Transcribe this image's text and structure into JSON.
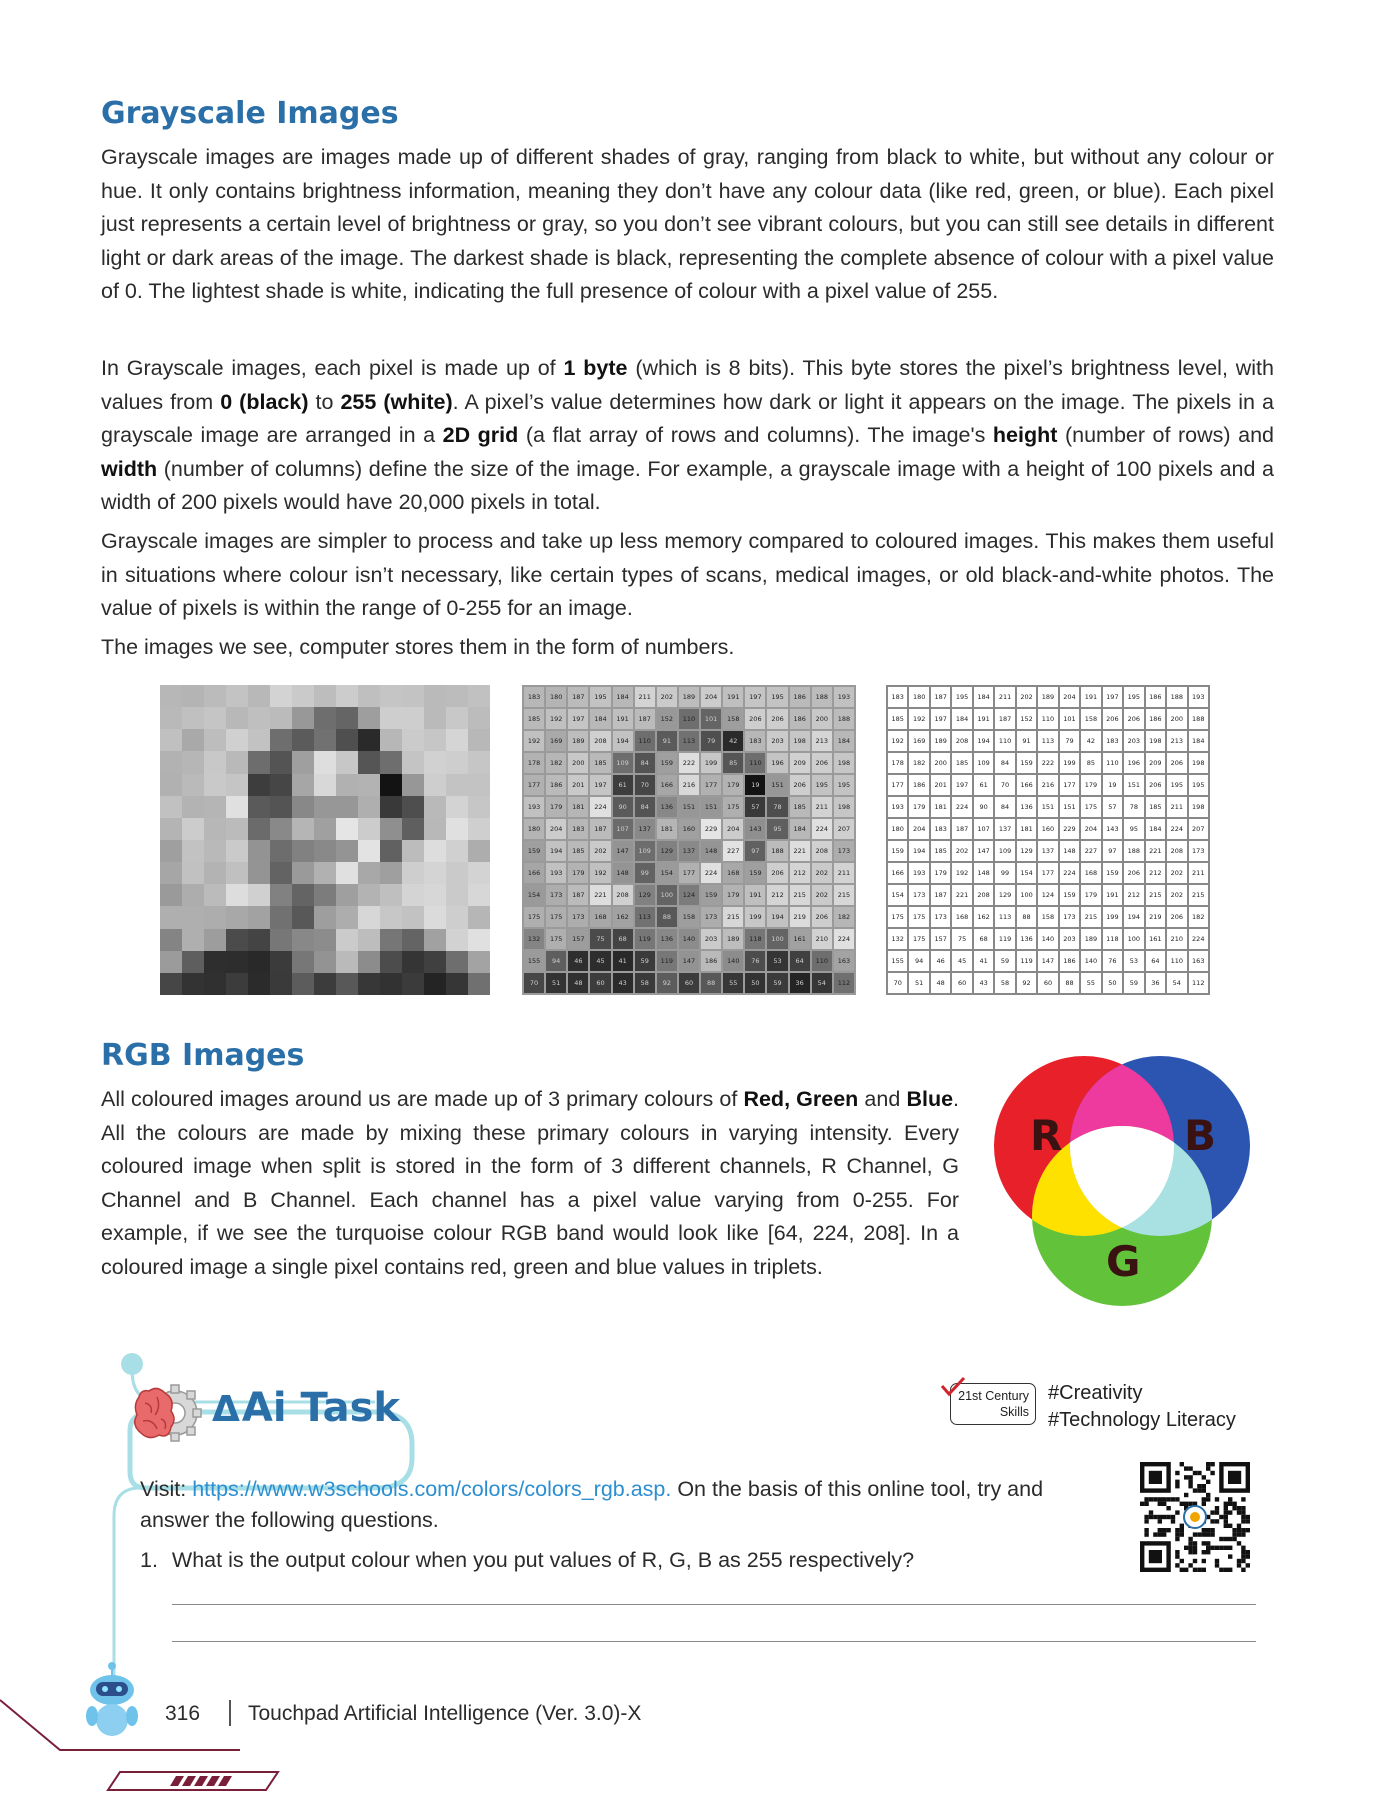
{
  "grayscale": {
    "heading": "Grayscale Images",
    "para1": "Grayscale images are images made up of different shades of gray, ranging from black to white, but without any colour or hue. It only contains brightness information, meaning they don’t have any colour data (like red, green, or blue). Each pixel just represents a certain level of brightness or gray, so you don’t see vibrant colours, but you can still see details in different light or dark areas of the image. The darkest shade is black, representing the complete absence of colour with a pixel value of 0. The lightest shade is white, indicating the full presence of colour with a pixel value of 255.",
    "para2": {
      "t1": "In Grayscale images, each pixel is made up of ",
      "b1": "1 byte",
      "t2": " (which is 8 bits). This byte stores the pixel’s brightness level, with values from ",
      "b2": "0 (black)",
      "t3": " to ",
      "b3": "255 (white)",
      "t4": ". A pixel’s value determines how dark or light it appears on the image. The pixels in a grayscale image are arranged in a ",
      "b4": "2D grid",
      "t5": " (a flat array of rows and columns). The image's ",
      "b5": "height",
      "t6": " (number of rows) and ",
      "b6": "width",
      "t7": " (number of columns) define the size of the image. For example, a grayscale image with a height of 100 pixels and a width of 200 pixels would have 20,000 pixels in total."
    },
    "para3": "Grayscale images are simpler to process and take up less memory compared to coloured images. This makes them useful in situations where colour isn’t necessary, like certain types of scans, medical images, or old black-and-white photos. The value of pixels is within the range of 0-255 for an image.",
    "para4": "The images we see, computer stores them in the form of numbers.",
    "pixel_values": [
      [
        183,
        180,
        187,
        195,
        184,
        211,
        202,
        189,
        204,
        191,
        197,
        195,
        186,
        188,
        193
      ],
      [
        185,
        192,
        197,
        184,
        191,
        187,
        152,
        110,
        101,
        158,
        206,
        206,
        186,
        200,
        188
      ],
      [
        192,
        169,
        189,
        208,
        194,
        110,
        91,
        113,
        79,
        42,
        183,
        203,
        198,
        213,
        184
      ],
      [
        178,
        182,
        200,
        185,
        109,
        84,
        159,
        222,
        199,
        85,
        110,
        196,
        209,
        206,
        198
      ],
      [
        177,
        186,
        201,
        197,
        61,
        70,
        166,
        216,
        177,
        179,
        19,
        151,
        206,
        195,
        195
      ],
      [
        193,
        179,
        181,
        224,
        90,
        84,
        136,
        151,
        151,
        175,
        57,
        78,
        185,
        211,
        198
      ],
      [
        180,
        204,
        183,
        187,
        107,
        137,
        181,
        160,
        229,
        204,
        143,
        95,
        184,
        224,
        207
      ],
      [
        159,
        194,
        185,
        202,
        147,
        109,
        129,
        137,
        148,
        227,
        97,
        188,
        221,
        208,
        173
      ],
      [
        166,
        193,
        179,
        192,
        148,
        99,
        154,
        177,
        224,
        168,
        159,
        206,
        212,
        202,
        211
      ],
      [
        154,
        173,
        187,
        221,
        208,
        129,
        100,
        124,
        159,
        179,
        191,
        212,
        215,
        202,
        215
      ],
      [
        175,
        175,
        173,
        168,
        162,
        113,
        88,
        158,
        173,
        215,
        199,
        194,
        219,
        206,
        182
      ],
      [
        132,
        175,
        157,
        75,
        68,
        119,
        136,
        140,
        203,
        189,
        118,
        100,
        161,
        210,
        224
      ],
      [
        155,
        94,
        46,
        45,
        41,
        59,
        119,
        147,
        186,
        140,
        76,
        53,
        64,
        110,
        163
      ],
      [
        70,
        51,
        48,
        60,
        43,
        58,
        92,
        60,
        88,
        55,
        50,
        59,
        36,
        54,
        112
      ]
    ]
  },
  "rgb": {
    "heading": "RGB Images",
    "para": {
      "t1": "All coloured images around us are made up of 3 primary colours of ",
      "b1": "Red, Green",
      "t2": " and ",
      "b2": "Blue",
      "t3": ". All the colours are made by mixing these primary colours in varying intensity. Every coloured image when split is stored in the form of 3 different channels, R Channel, G Channel and B Channel. Each channel has a pixel value varying from 0-255. For example, if we see the turquoise colour RGB band would look like [64, 224, 208]. In a coloured image a single pixel contains red, green and blue values in triplets."
    },
    "venn": {
      "r": "R",
      "g": "G",
      "b": "B",
      "colors": {
        "red": "#e8202a",
        "green": "#62c23a",
        "blue": "#2b55b0",
        "magenta": "#ee3a9e",
        "yellow": "#ffe100",
        "cyan": "#a9e1e2"
      }
    }
  },
  "ai_task": {
    "title": "Ai Task",
    "century": "21st Century",
    "skills": "Skills",
    "tag1": "#Creativity",
    "tag2": "#Technology Literacy",
    "visit_label": "Visit: ",
    "url": "https://www.w3schools.com/colors/colors_rgb.asp.",
    "instruction": " On the basis of this online tool, try and answer the following questions.",
    "question_number": "1.",
    "question": "What is the output colour when you put values of R, G, B as 255 respectively?"
  },
  "footer": {
    "page_number": "316",
    "book_title": "Touchpad Artificial Intelligence (Ver. 3.0)-X"
  }
}
